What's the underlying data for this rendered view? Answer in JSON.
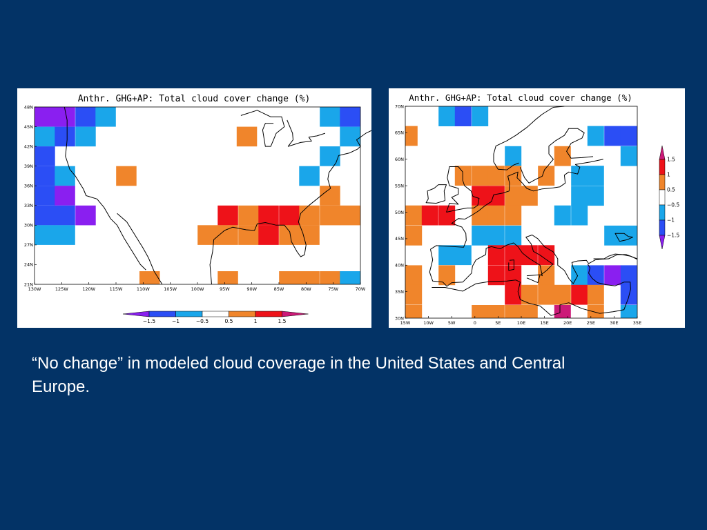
{
  "caption": "“No change” in modeled cloud coverage in the United States and Central Europe.",
  "colors": {
    "background": "#033366",
    "purple": "#8a1ff0",
    "blue": "#2b4ef5",
    "lightblue": "#1aa6ea",
    "orange": "#f0852b",
    "red": "#ee1219",
    "magenta": "#cc1a78"
  },
  "chart_data": [
    {
      "type": "heatmap",
      "title": "Anthr. GHG+AP: Total cloud cover change (%)",
      "region": "United States",
      "xlim": [
        -130,
        -70
      ],
      "ylim": [
        21,
        48
      ],
      "xticks": [
        "130W",
        "125W",
        "120W",
        "115W",
        "110W",
        "105W",
        "100W",
        "95W",
        "90W",
        "85W",
        "80W",
        "75W",
        "70W"
      ],
      "yticks": [
        "21N",
        "24N",
        "27N",
        "30N",
        "33N",
        "36N",
        "39N",
        "42N",
        "45N",
        "48N"
      ],
      "grid_cell_deg": [
        3.75,
        3.0
      ],
      "colorbar": {
        "orientation": "horizontal",
        "levels": [
          "−1.5",
          "−1",
          "−0.5",
          "0.5",
          "1",
          "1.5"
        ]
      },
      "cells": [
        {
          "lon": -128.1,
          "lat": 46.5,
          "bin": "lt-1.5"
        },
        {
          "lon": -124.4,
          "lat": 46.5,
          "bin": "lt-1.5"
        },
        {
          "lon": -120.6,
          "lat": 46.5,
          "bin": "-1.5to-1"
        },
        {
          "lon": -116.9,
          "lat": 46.5,
          "bin": "-1to-0.5"
        },
        {
          "lon": -75.6,
          "lat": 46.5,
          "bin": "-1to-0.5"
        },
        {
          "lon": -71.9,
          "lat": 46.5,
          "bin": "-1.5to-1"
        },
        {
          "lon": -128.1,
          "lat": 43.5,
          "bin": "-1to-0.5"
        },
        {
          "lon": -124.4,
          "lat": 43.5,
          "bin": "-1.5to-1"
        },
        {
          "lon": -120.6,
          "lat": 43.5,
          "bin": "-1to-0.5"
        },
        {
          "lon": -90.9,
          "lat": 43.5,
          "bin": "0.5to1"
        },
        {
          "lon": -71.9,
          "lat": 43.5,
          "bin": "-1to-0.5"
        },
        {
          "lon": -128.1,
          "lat": 40.5,
          "bin": "-1.5to-1"
        },
        {
          "lon": -75.6,
          "lat": 40.5,
          "bin": "-1to-0.5"
        },
        {
          "lon": -128.1,
          "lat": 37.5,
          "bin": "-1.5to-1"
        },
        {
          "lon": -124.4,
          "lat": 37.5,
          "bin": "-1to-0.5"
        },
        {
          "lon": -113.1,
          "lat": 37.5,
          "bin": "0.5to1"
        },
        {
          "lon": -79.4,
          "lat": 37.5,
          "bin": "-1to-0.5"
        },
        {
          "lon": -128.1,
          "lat": 34.5,
          "bin": "-1.5to-1"
        },
        {
          "lon": -124.4,
          "lat": 34.5,
          "bin": "lt-1.5"
        },
        {
          "lon": -75.6,
          "lat": 34.5,
          "bin": "0.5to1"
        },
        {
          "lon": -128.1,
          "lat": 31.5,
          "bin": "-1.5to-1"
        },
        {
          "lon": -124.4,
          "lat": 31.5,
          "bin": "-1.5to-1"
        },
        {
          "lon": -120.6,
          "lat": 31.5,
          "bin": "lt-1.5"
        },
        {
          "lon": -94.4,
          "lat": 31.5,
          "bin": "1to1.5"
        },
        {
          "lon": -90.6,
          "lat": 31.5,
          "bin": "0.5to1"
        },
        {
          "lon": -86.9,
          "lat": 31.5,
          "bin": "1to1.5"
        },
        {
          "lon": -83.1,
          "lat": 31.5,
          "bin": "1to1.5"
        },
        {
          "lon": -79.4,
          "lat": 31.5,
          "bin": "0.5to1"
        },
        {
          "lon": -75.6,
          "lat": 31.5,
          "bin": "0.5to1"
        },
        {
          "lon": -71.9,
          "lat": 31.5,
          "bin": "0.5to1"
        },
        {
          "lon": -128.1,
          "lat": 28.5,
          "bin": "-1to-0.5"
        },
        {
          "lon": -124.4,
          "lat": 28.5,
          "bin": "-1to-0.5"
        },
        {
          "lon": -98.1,
          "lat": 28.5,
          "bin": "0.5to1"
        },
        {
          "lon": -94.4,
          "lat": 28.5,
          "bin": "0.5to1"
        },
        {
          "lon": -90.6,
          "lat": 28.5,
          "bin": "0.5to1"
        },
        {
          "lon": -86.9,
          "lat": 28.5,
          "bin": "1to1.5"
        },
        {
          "lon": -83.1,
          "lat": 28.5,
          "bin": "0.5to1"
        },
        {
          "lon": -79.4,
          "lat": 28.5,
          "bin": "0.5to1"
        },
        {
          "lon": -108.8,
          "lat": 21.5,
          "bin": "0.5to1"
        },
        {
          "lon": -94.4,
          "lat": 21.5,
          "bin": "0.5to1"
        },
        {
          "lon": -83.1,
          "lat": 21.5,
          "bin": "0.5to1"
        },
        {
          "lon": -79.4,
          "lat": 21.5,
          "bin": "0.5to1"
        },
        {
          "lon": -75.6,
          "lat": 21.5,
          "bin": "0.5to1"
        },
        {
          "lon": -71.9,
          "lat": 21.5,
          "bin": "-1to-0.5"
        }
      ]
    },
    {
      "type": "heatmap",
      "title": "Anthr. GHG+AP: Total cloud cover change (%)",
      "region": "Europe",
      "xlim": [
        -15,
        37.5
      ],
      "ylim": [
        30,
        70
      ],
      "xticks": [
        "15W",
        "10W",
        "5W",
        "0",
        "5E",
        "10E",
        "15E",
        "20E",
        "25E",
        "30E",
        "35E"
      ],
      "yticks": [
        "30N",
        "35N",
        "40N",
        "45N",
        "50N",
        "55N",
        "60N",
        "65N",
        "70N"
      ],
      "grid_cell_deg": [
        3.75,
        3.75
      ],
      "colorbar": {
        "orientation": "vertical",
        "levels": [
          "1.5",
          "1",
          "0.5",
          "−0.5",
          "−1",
          "−1.5"
        ]
      },
      "cells": [
        {
          "lon": -5.6,
          "lat": 68.1,
          "bin": "-1to-0.5"
        },
        {
          "lon": -1.9,
          "lat": 68.1,
          "bin": "-1.5to-1"
        },
        {
          "lon": 1.9,
          "lat": 68.1,
          "bin": "-1to-0.5"
        },
        {
          "lon": -14.1,
          "lat": 64.4,
          "bin": "0.5to1"
        },
        {
          "lon": 28.1,
          "lat": 64.4,
          "bin": "-1to-0.5"
        },
        {
          "lon": 31.9,
          "lat": 64.4,
          "bin": "-1.5to-1"
        },
        {
          "lon": 35.6,
          "lat": 64.4,
          "bin": "-1.5to-1"
        },
        {
          "lon": 9.4,
          "lat": 60.6,
          "bin": "-1to-0.5"
        },
        {
          "lon": 20.6,
          "lat": 60.6,
          "bin": "0.5to1"
        },
        {
          "lon": 35.6,
          "lat": 60.6,
          "bin": "-1to-0.5"
        },
        {
          "lon": -1.9,
          "lat": 56.9,
          "bin": "0.5to1"
        },
        {
          "lon": 1.9,
          "lat": 56.9,
          "bin": "0.5to1"
        },
        {
          "lon": 5.6,
          "lat": 56.9,
          "bin": "0.5to1"
        },
        {
          "lon": 9.4,
          "lat": 56.9,
          "bin": "0.5to1"
        },
        {
          "lon": 16.9,
          "lat": 56.9,
          "bin": "0.5to1"
        },
        {
          "lon": 24.4,
          "lat": 56.9,
          "bin": "-1to-0.5"
        },
        {
          "lon": 28.1,
          "lat": 56.9,
          "bin": "-1to-0.5"
        },
        {
          "lon": 1.9,
          "lat": 53.1,
          "bin": "1to1.5"
        },
        {
          "lon": 5.6,
          "lat": 53.1,
          "bin": "1to1.5"
        },
        {
          "lon": 9.4,
          "lat": 53.1,
          "bin": "0.5to1"
        },
        {
          "lon": 13.1,
          "lat": 53.1,
          "bin": "0.5to1"
        },
        {
          "lon": 24.4,
          "lat": 53.1,
          "bin": "-1to-0.5"
        },
        {
          "lon": 28.1,
          "lat": 53.1,
          "bin": "-1to-0.5"
        },
        {
          "lon": -13.1,
          "lat": 49.4,
          "bin": "0.5to1"
        },
        {
          "lon": -9.4,
          "lat": 49.4,
          "bin": "1to1.5"
        },
        {
          "lon": -5.6,
          "lat": 49.4,
          "bin": "1to1.5"
        },
        {
          "lon": 1.9,
          "lat": 49.4,
          "bin": "0.5to1"
        },
        {
          "lon": 5.6,
          "lat": 49.4,
          "bin": "0.5to1"
        },
        {
          "lon": 9.4,
          "lat": 49.4,
          "bin": "0.5to1"
        },
        {
          "lon": 20.6,
          "lat": 49.4,
          "bin": "-1to-0.5"
        },
        {
          "lon": 24.4,
          "lat": 49.4,
          "bin": "-1to-0.5"
        },
        {
          "lon": -13.1,
          "lat": 45.6,
          "bin": "0.5to1"
        },
        {
          "lon": 1.9,
          "lat": 45.6,
          "bin": "-1to-0.5"
        },
        {
          "lon": 5.6,
          "lat": 45.6,
          "bin": "-1to-0.5"
        },
        {
          "lon": 9.4,
          "lat": 45.6,
          "bin": "-1to-0.5"
        },
        {
          "lon": 31.9,
          "lat": 45.6,
          "bin": "-1to-0.5"
        },
        {
          "lon": 35.6,
          "lat": 45.6,
          "bin": "-1to-0.5"
        },
        {
          "lon": -5.6,
          "lat": 41.9,
          "bin": "-1to-0.5"
        },
        {
          "lon": -1.9,
          "lat": 41.9,
          "bin": "-1to-0.5"
        },
        {
          "lon": 5.6,
          "lat": 41.9,
          "bin": "1to1.5"
        },
        {
          "lon": 9.4,
          "lat": 41.9,
          "bin": "1to1.5"
        },
        {
          "lon": 13.1,
          "lat": 41.9,
          "bin": "1to1.5"
        },
        {
          "lon": 16.9,
          "lat": 41.9,
          "bin": "1to1.5"
        },
        {
          "lon": -13.1,
          "lat": 38.1,
          "bin": "0.5to1"
        },
        {
          "lon": -5.6,
          "lat": 38.1,
          "bin": "0.5to1"
        },
        {
          "lon": 5.6,
          "lat": 38.1,
          "bin": "1to1.5"
        },
        {
          "lon": 9.4,
          "lat": 38.1,
          "bin": "1to1.5"
        },
        {
          "lon": 16.9,
          "lat": 38.1,
          "bin": "0.5to1"
        },
        {
          "lon": 24.4,
          "lat": 38.1,
          "bin": "-1to-0.5"
        },
        {
          "lon": 28.1,
          "lat": 38.1,
          "bin": "-1.5to-1"
        },
        {
          "lon": 31.9,
          "lat": 38.1,
          "bin": "lt-1.5"
        },
        {
          "lon": 35.6,
          "lat": 38.1,
          "bin": "-1.5to-1"
        },
        {
          "lon": -13.1,
          "lat": 34.4,
          "bin": "0.5to1"
        },
        {
          "lon": 9.4,
          "lat": 34.4,
          "bin": "1to1.5"
        },
        {
          "lon": 13.1,
          "lat": 34.4,
          "bin": "0.5to1"
        },
        {
          "lon": 16.9,
          "lat": 34.4,
          "bin": "0.5to1"
        },
        {
          "lon": 20.6,
          "lat": 34.4,
          "bin": "0.5to1"
        },
        {
          "lon": 24.4,
          "lat": 34.4,
          "bin": "1to1.5"
        },
        {
          "lon": 28.1,
          "lat": 34.4,
          "bin": "0.5to1"
        },
        {
          "lon": 35.6,
          "lat": 34.4,
          "bin": "-1.5to-1"
        },
        {
          "lon": -13.1,
          "lat": 30.6,
          "bin": "0.5to1"
        },
        {
          "lon": 1.9,
          "lat": 30.6,
          "bin": "0.5to1"
        },
        {
          "lon": 5.6,
          "lat": 30.6,
          "bin": "0.5to1"
        },
        {
          "lon": 9.4,
          "lat": 30.6,
          "bin": "0.5to1"
        },
        {
          "lon": 13.1,
          "lat": 30.6,
          "bin": "0.5to1"
        },
        {
          "lon": 20.6,
          "lat": 30.6,
          "bin": "gt1.5"
        },
        {
          "lon": 28.1,
          "lat": 30.6,
          "bin": "0.5to1"
        },
        {
          "lon": 35.6,
          "lat": 30.6,
          "bin": "-1to-0.5"
        }
      ]
    }
  ]
}
